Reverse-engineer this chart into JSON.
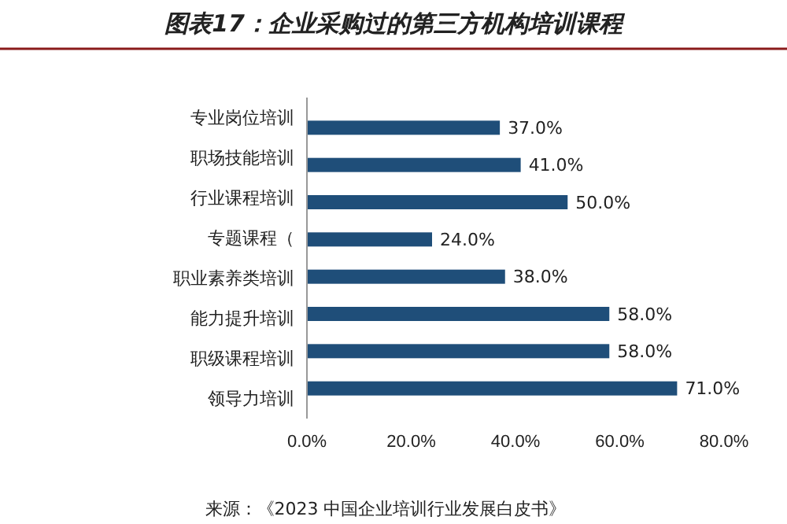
{
  "chart_data": {
    "type": "bar",
    "orientation": "horizontal",
    "title": "图表17：企业采购过的第三方机构培训课程",
    "categories": [
      "专业岗位培训",
      "职场技能培训",
      "行业课程培训",
      "专题课程（",
      "职业素养类培训",
      "能力提升培训",
      "职级课程培训",
      "领导力培训"
    ],
    "values": [
      37,
      41,
      50,
      24,
      38,
      58,
      58,
      71
    ],
    "value_labels": [
      "37.0%",
      "41.0%",
      "50.0%",
      "24.0%",
      "38.0%",
      "58.0%",
      "58.0%",
      "71.0%"
    ],
    "color": "#1f4e79",
    "xlim": [
      0,
      80
    ],
    "xticks": [
      {
        "value": 0,
        "label": "0.0%"
      },
      {
        "value": 20,
        "label": "20.0%"
      },
      {
        "value": 40,
        "label": "40.0%"
      },
      {
        "value": 60,
        "label": "60.0%"
      },
      {
        "value": 80,
        "label": "80.0%"
      }
    ],
    "grid": false,
    "annotations": [
      "来源：《2023 中国企业培训行业发展白皮书》"
    ]
  }
}
